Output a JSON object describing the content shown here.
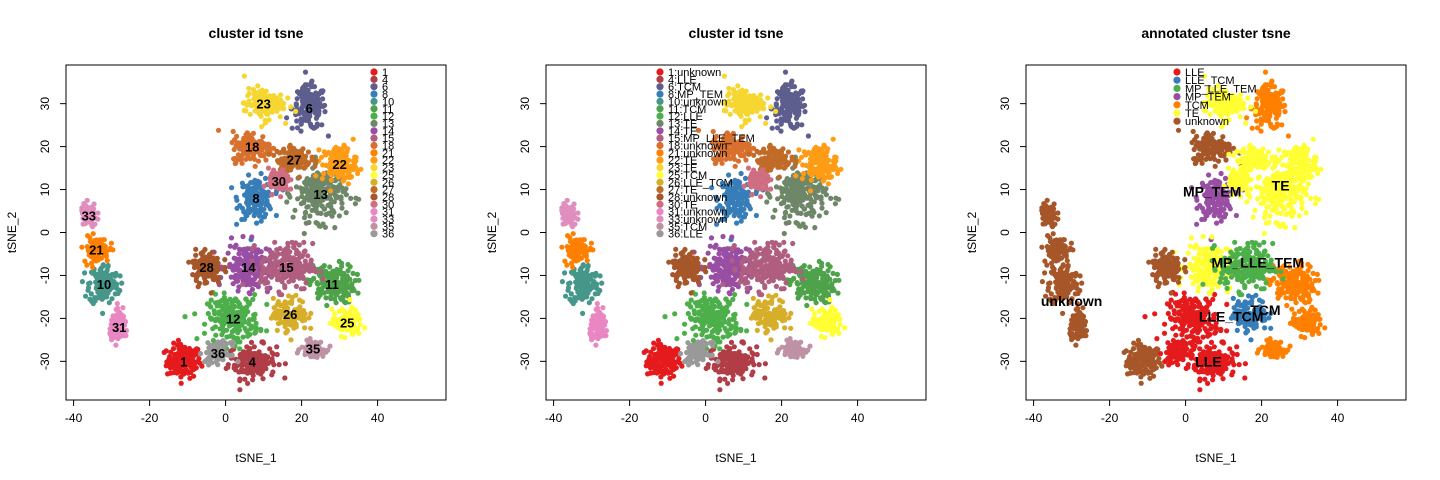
{
  "palette": {
    "1": "#E41A1C",
    "4": "#B13D46",
    "6": "#5E5E8E",
    "8": "#377EB8",
    "10": "#46978A",
    "11": "#4EA249",
    "12": "#4DAF4A",
    "13": "#6E8769",
    "14": "#984EA3",
    "15": "#B05E80",
    "18": "#D8702E",
    "21": "#FF7F00",
    "22": "#FF9C16",
    "23": "#F6D631",
    "25": "#FFFF33",
    "26": "#D7AE2A",
    "27": "#C06B28",
    "28": "#A65628",
    "30": "#CF6E83",
    "31": "#E987C2",
    "33": "#DF8EBD",
    "35": "#BE92A4",
    "36": "#999999"
  },
  "annotated_palette": {
    "LLE": "#E41A1C",
    "LLE_TCM": "#377EB8",
    "MP_LLE_TEM": "#4DAF4A",
    "MP_TEM": "#984EA3",
    "TCM": "#FF7F00",
    "TE": "#FFFF33",
    "unknown": "#A65628"
  },
  "chart_data": [
    {
      "type": "scatter",
      "title": "cluster id tsne",
      "xlabel": "tSNE_1",
      "ylabel": "tSNE_2",
      "xlim": [
        -42,
        58
      ],
      "ylim": [
        -39,
        39
      ],
      "xticks": [
        -40,
        -20,
        0,
        20,
        40
      ],
      "yticks": [
        -30,
        -20,
        -10,
        0,
        10,
        20,
        30
      ],
      "legend_position": "top-right",
      "legend": [
        "1",
        "4",
        "6",
        "8",
        "10",
        "11",
        "12",
        "13",
        "14",
        "15",
        "18",
        "21",
        "22",
        "23",
        "25",
        "26",
        "27",
        "28",
        "30",
        "31",
        "33",
        "35",
        "36"
      ],
      "cluster_labels": [
        "1",
        "4",
        "6",
        "8",
        "10",
        "11",
        "12",
        "13",
        "14",
        "15",
        "18",
        "21",
        "22",
        "23",
        "25",
        "26",
        "27",
        "28",
        "30",
        "31",
        "33",
        "35",
        "36"
      ]
    },
    {
      "type": "scatter",
      "title": "cluster id tsne",
      "xlabel": "tSNE_1",
      "ylabel": "tSNE_2",
      "xlim": [
        -42,
        58
      ],
      "ylim": [
        -39,
        39
      ],
      "xticks": [
        -40,
        -20,
        0,
        20,
        40
      ],
      "yticks": [
        -30,
        -20,
        -10,
        0,
        10,
        20,
        30
      ],
      "legend_position": "top-center",
      "legend": [
        "1:unknown",
        "4:LLE",
        "6:TCM",
        "8:MP_TEM",
        "10:unknown",
        "11:TCM",
        "12:LLE",
        "13:TE",
        "14:TE",
        "15:MP_LLE_TEM",
        "18:unknown",
        "21:unknown",
        "22:TE",
        "23:TE",
        "25:TCM",
        "26:LLE_TCM",
        "27:TE",
        "28:unknown",
        "30:TE",
        "31:unknown",
        "33:unknown",
        "35:TCM",
        "36:LLE"
      ],
      "cluster_labels": []
    },
    {
      "type": "scatter",
      "title": "annotated cluster tsne",
      "xlabel": "tSNE_1",
      "ylabel": "tSNE_2",
      "xlim": [
        -42,
        58
      ],
      "ylim": [
        -39,
        39
      ],
      "xticks": [
        -40,
        -20,
        0,
        20,
        40
      ],
      "yticks": [
        -30,
        -20,
        -10,
        0,
        10,
        20,
        30
      ],
      "legend_position": "top-center",
      "legend": [
        "LLE",
        "LLE_TCM",
        "MP_LLE_TEM",
        "MP_TEM",
        "TCM",
        "TE",
        "unknown"
      ],
      "cluster_labels": [
        "LLE",
        "LLE_TCM",
        "MP_LLE_TEM",
        "MP_TEM",
        "TCM",
        "TE",
        "unknown"
      ]
    }
  ],
  "clusters": [
    {
      "id": "1",
      "label": "unknown",
      "cx": -11,
      "cy": -30,
      "sx": 3.0,
      "sy": 2.6
    },
    {
      "id": "4",
      "label": "LLE",
      "cx": 7,
      "cy": -30,
      "sx": 4.2,
      "sy": 2.6
    },
    {
      "id": "6",
      "label": "TCM",
      "cx": 22,
      "cy": 29,
      "sx": 3.0,
      "sy": 3.4
    },
    {
      "id": "8",
      "label": "MP_TEM",
      "cx": 8,
      "cy": 8,
      "sx": 3.0,
      "sy": 3.2
    },
    {
      "id": "10",
      "label": "unknown",
      "cx": -32,
      "cy": -12,
      "sx": 2.6,
      "sy": 3.2
    },
    {
      "id": "11",
      "label": "TCM",
      "cx": 28,
      "cy": -12,
      "sx": 4.0,
      "sy": 3.0
    },
    {
      "id": "12",
      "label": "LLE",
      "cx": 2,
      "cy": -20,
      "sx": 4.5,
      "sy": 3.6
    },
    {
      "id": "13",
      "label": "TE",
      "cx": 25,
      "cy": 9,
      "sx": 4.5,
      "sy": 4.2
    },
    {
      "id": "14",
      "label": "TE",
      "cx": 6,
      "cy": -8,
      "sx": 4.0,
      "sy": 3.6
    },
    {
      "id": "15",
      "label": "MP_LLE_TEM",
      "cx": 16,
      "cy": -8,
      "sx": 4.6,
      "sy": 3.6
    },
    {
      "id": "18",
      "label": "unknown",
      "cx": 7,
      "cy": 20,
      "sx": 3.5,
      "sy": 2.4
    },
    {
      "id": "21",
      "label": "unknown",
      "cx": -34,
      "cy": -4,
      "sx": 2.2,
      "sy": 2.0
    },
    {
      "id": "22",
      "label": "TE",
      "cx": 30,
      "cy": 16,
      "sx": 3.0,
      "sy": 2.8
    },
    {
      "id": "23",
      "label": "TE",
      "cx": 10,
      "cy": 30,
      "sx": 3.4,
      "sy": 2.4
    },
    {
      "id": "25",
      "label": "TCM",
      "cx": 32,
      "cy": -21,
      "sx": 2.6,
      "sy": 2.0
    },
    {
      "id": "26",
      "label": "LLE_TCM",
      "cx": 17,
      "cy": -19,
      "sx": 3.0,
      "sy": 2.6
    },
    {
      "id": "27",
      "label": "TE",
      "cx": 18,
      "cy": 17,
      "sx": 3.0,
      "sy": 1.8
    },
    {
      "id": "28",
      "label": "unknown",
      "cx": -5,
      "cy": -8,
      "sx": 2.6,
      "sy": 2.6
    },
    {
      "id": "30",
      "label": "TE",
      "cx": 14,
      "cy": 12,
      "sx": 1.8,
      "sy": 1.8
    },
    {
      "id": "31",
      "label": "unknown",
      "cx": -28,
      "cy": -22,
      "sx": 1.6,
      "sy": 2.2
    },
    {
      "id": "33",
      "label": "unknown",
      "cx": -36,
      "cy": 4,
      "sx": 1.4,
      "sy": 1.8
    },
    {
      "id": "35",
      "label": "TCM",
      "cx": 23,
      "cy": -27,
      "sx": 2.0,
      "sy": 1.2
    },
    {
      "id": "36",
      "label": "LLE",
      "cx": -2,
      "cy": -28,
      "sx": 2.2,
      "sy": 1.6
    }
  ]
}
